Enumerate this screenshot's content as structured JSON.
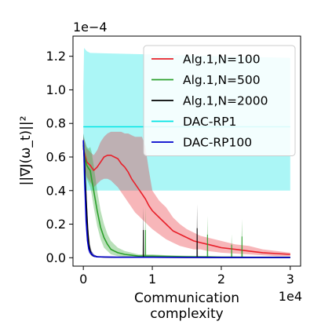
{
  "chart_data": {
    "type": "line",
    "xlabel": "Communication\ncomplexity",
    "ylabel": "||∇J(ω_t)||²",
    "x_offset_label": "1e4",
    "y_offset_label": "1e−4",
    "x_scale": 10000,
    "y_scale": 0.0001,
    "xlim": [
      -0.15,
      3.15
    ],
    "ylim": [
      -0.05,
      1.32
    ],
    "x_ticks": [
      0,
      1,
      2,
      3
    ],
    "x_tick_labels": [
      "0",
      "1",
      "2",
      "3"
    ],
    "y_ticks": [
      0.0,
      0.2,
      0.4,
      0.6,
      0.8,
      1.0,
      1.2
    ],
    "y_tick_labels": [
      "0.0",
      "0.2",
      "0.4",
      "0.6",
      "0.8",
      "1.0",
      "1.2"
    ],
    "grid": false,
    "legend_position": "top-right",
    "series": [
      {
        "name": "DAC-RP1",
        "color": "#00e5e5",
        "x": [
          0.0,
          0.01,
          0.03,
          0.05,
          0.1,
          3.0
        ],
        "y": [
          0.78,
          0.78,
          0.78,
          0.78,
          0.78,
          0.78
        ],
        "lower": [
          0.52,
          0.4,
          0.4,
          0.4,
          0.4,
          0.4
        ],
        "upper": [
          1.0,
          1.25,
          1.24,
          1.23,
          1.22,
          1.19
        ]
      },
      {
        "name": "Alg.1,N=100",
        "color": "#e8202a",
        "x": [
          0.0,
          0.02,
          0.05,
          0.1,
          0.15,
          0.2,
          0.25,
          0.3,
          0.35,
          0.4,
          0.45,
          0.5,
          0.55,
          0.6,
          0.65,
          0.7,
          0.75,
          0.8,
          0.85,
          0.9,
          0.95,
          1.0,
          1.1,
          1.2,
          1.3,
          1.4,
          1.5,
          1.6,
          1.7,
          1.8,
          1.9,
          2.0,
          2.2,
          2.4,
          2.6,
          2.8,
          3.0
        ],
        "y": [
          0.65,
          0.62,
          0.57,
          0.55,
          0.52,
          0.54,
          0.57,
          0.6,
          0.61,
          0.61,
          0.6,
          0.59,
          0.56,
          0.54,
          0.51,
          0.47,
          0.44,
          0.41,
          0.38,
          0.35,
          0.31,
          0.28,
          0.24,
          0.2,
          0.16,
          0.14,
          0.12,
          0.1,
          0.09,
          0.08,
          0.07,
          0.06,
          0.05,
          0.04,
          0.03,
          0.025,
          0.02
        ],
        "lower": [
          0.57,
          0.54,
          0.48,
          0.45,
          0.42,
          0.44,
          0.46,
          0.47,
          0.47,
          0.46,
          0.44,
          0.42,
          0.39,
          0.36,
          0.33,
          0.3,
          0.27,
          0.25,
          0.23,
          0.21,
          0.19,
          0.17,
          0.14,
          0.11,
          0.09,
          0.07,
          0.06,
          0.05,
          0.05,
          0.04,
          0.035,
          0.03,
          0.025,
          0.02,
          0.015,
          0.01,
          0.01
        ],
        "upper": [
          0.72,
          0.7,
          0.65,
          0.63,
          0.61,
          0.64,
          0.69,
          0.72,
          0.74,
          0.75,
          0.75,
          0.75,
          0.75,
          0.74,
          0.74,
          0.73,
          0.72,
          0.72,
          0.72,
          0.66,
          0.52,
          0.4,
          0.34,
          0.3,
          0.24,
          0.2,
          0.17,
          0.15,
          0.13,
          0.12,
          0.11,
          0.1,
          0.08,
          0.07,
          0.05,
          0.04,
          0.03
        ]
      },
      {
        "name": "Alg.1,N=500",
        "color": "#2ca02c",
        "x": [
          0.0,
          0.02,
          0.05,
          0.08,
          0.1,
          0.12,
          0.15,
          0.2,
          0.25,
          0.3,
          0.35,
          0.4,
          0.45,
          0.5,
          0.6,
          0.7,
          0.8,
          0.9,
          1.0,
          1.2,
          1.5,
          1.8,
          2.0,
          2.2,
          2.4,
          2.6,
          3.0
        ],
        "y": [
          0.67,
          0.6,
          0.55,
          0.53,
          0.52,
          0.47,
          0.4,
          0.28,
          0.18,
          0.12,
          0.08,
          0.05,
          0.04,
          0.03,
          0.02,
          0.015,
          0.01,
          0.01,
          0.01,
          0.008,
          0.006,
          0.005,
          0.004,
          0.004,
          0.003,
          0.003,
          0.003
        ],
        "lower": [
          0.61,
          0.53,
          0.47,
          0.44,
          0.42,
          0.38,
          0.3,
          0.19,
          0.11,
          0.06,
          0.04,
          0.02,
          0.015,
          0.01,
          0.005,
          0.003,
          0.002,
          0.002,
          0.002,
          0.001,
          0.001,
          0.001,
          0.001,
          0.001,
          0.001,
          0.001,
          0.001
        ],
        "upper": [
          0.74,
          0.7,
          0.66,
          0.65,
          0.66,
          0.63,
          0.55,
          0.4,
          0.28,
          0.2,
          0.14,
          0.1,
          0.08,
          0.06,
          0.04,
          0.03,
          0.02,
          0.02,
          0.02,
          0.015,
          0.012,
          0.01,
          0.008,
          0.007,
          0.006,
          0.005,
          0.005
        ],
        "spikes_x": [
          0.9,
          1.8,
          2.15,
          2.3
        ],
        "spikes_y": [
          0.3,
          0.25,
          0.14,
          0.23
        ]
      },
      {
        "name": "Alg.1,N=2000",
        "color": "#000000",
        "x": [
          0.0,
          0.02,
          0.04,
          0.06,
          0.08,
          0.1,
          0.12,
          0.15,
          0.2,
          0.3,
          0.5,
          1.0,
          1.5,
          2.0,
          3.0
        ],
        "y": [
          0.69,
          0.55,
          0.35,
          0.18,
          0.08,
          0.04,
          0.02,
          0.01,
          0.006,
          0.004,
          0.003,
          0.003,
          0.002,
          0.002,
          0.002
        ],
        "lower": [
          0.64,
          0.48,
          0.28,
          0.12,
          0.05,
          0.02,
          0.01,
          0.005,
          0.003,
          0.002,
          0.001,
          0.001,
          0.001,
          0.001,
          0.001
        ],
        "upper": [
          0.74,
          0.62,
          0.43,
          0.25,
          0.13,
          0.07,
          0.04,
          0.02,
          0.01,
          0.007,
          0.005,
          0.005,
          0.004,
          0.004,
          0.004
        ],
        "spikes_x": [
          0.87,
          1.65
        ],
        "spikes_y": [
          0.3,
          0.32
        ]
      },
      {
        "name": "DAC-RP100",
        "color": "#0000cc",
        "x": [
          0.0,
          0.01,
          0.02,
          0.04,
          0.06,
          0.08,
          0.1,
          0.15,
          0.2,
          0.5,
          1.0,
          2.0,
          3.0
        ],
        "y": [
          0.7,
          0.6,
          0.45,
          0.22,
          0.1,
          0.05,
          0.03,
          0.01,
          0.005,
          0.003,
          0.003,
          0.002,
          0.002
        ],
        "lower": [
          0.66,
          0.55,
          0.4,
          0.17,
          0.07,
          0.03,
          0.02,
          0.005,
          0.002,
          0.001,
          0.001,
          0.001,
          0.001
        ],
        "upper": [
          0.74,
          0.66,
          0.51,
          0.28,
          0.14,
          0.08,
          0.05,
          0.02,
          0.01,
          0.006,
          0.005,
          0.004,
          0.004
        ]
      }
    ],
    "legend_order": [
      "Alg.1,N=100",
      "Alg.1,N=500",
      "Alg.1,N=2000",
      "DAC-RP1",
      "DAC-RP100"
    ]
  }
}
